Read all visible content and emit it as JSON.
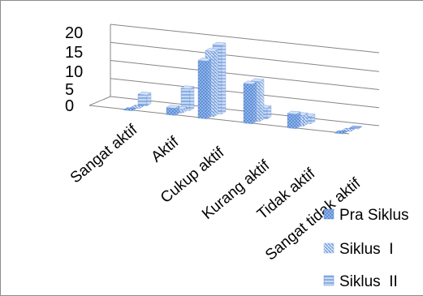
{
  "chart_data": {
    "type": "bar",
    "categories": [
      "Sangat aktif",
      "Aktif",
      "Cukup aktif",
      "Kurang aktif",
      "Tidak aktif",
      "Sangat tidak aktif"
    ],
    "series": [
      {
        "name": "Pra Siklus",
        "values": [
          0,
          2,
          16,
          11,
          4,
          0
        ]
      },
      {
        "name": "Siklus  I",
        "values": [
          0,
          1,
          18,
          11,
          3,
          0
        ]
      },
      {
        "name": "Siklus  II",
        "values": [
          3,
          6,
          19,
          3,
          2,
          0
        ]
      }
    ],
    "yticks": [
      "0",
      "5",
      "10",
      "15",
      "20"
    ],
    "ylim": [
      0,
      20
    ],
    "legend": "right",
    "grid": true,
    "colors": {
      "bar": "#7fa7e3",
      "bar_light": "#d3e2f7",
      "bar_dark": "#4a76be",
      "grid": "#868686"
    }
  }
}
